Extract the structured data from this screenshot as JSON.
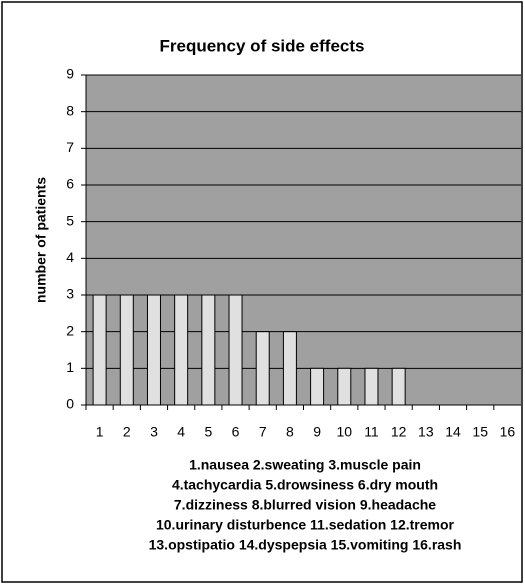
{
  "chart_data": {
    "type": "bar",
    "title": "Frequency of side effects",
    "ylabel": "number of patients",
    "categories": [
      "1",
      "2",
      "3",
      "4",
      "5",
      "6",
      "7",
      "8",
      "9",
      "10",
      "11",
      "12",
      "13",
      "14",
      "15",
      "16"
    ],
    "values": [
      3,
      3,
      3,
      3,
      3,
      3,
      2,
      2,
      1,
      1,
      1,
      1,
      0,
      0,
      0,
      0
    ],
    "color": "#e0e0e0",
    "plot_background": "#a0a0a0",
    "ylim": [
      0,
      9
    ],
    "yticks": [
      0,
      1,
      2,
      3,
      4,
      5,
      6,
      7,
      8,
      9
    ],
    "grid": true,
    "notes": [
      "1.nausea 2.sweating 3.muscle pain",
      "4.tachycardia 5.drowsiness 6.dry mouth",
      "7.dizziness 8.blurred vision 9.headache",
      "10.urinary disturbence 11.sedation 12.tremor",
      "13.opstipatio 14.dyspepsia 15.vomiting 16.rash"
    ]
  }
}
